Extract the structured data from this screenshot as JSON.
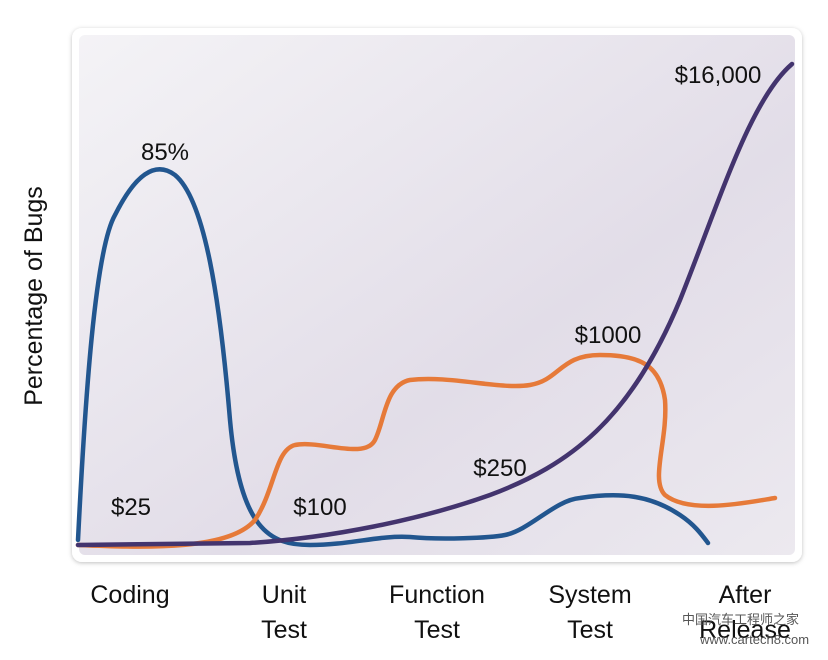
{
  "y_axis_label": "Percentage of Bugs",
  "annotations": {
    "peak": "85%",
    "cost_coding": "$25",
    "cost_unit_test": "$100",
    "cost_function_test": "$250",
    "cost_system_test": "$1000",
    "cost_after_release": "$16,000"
  },
  "stages": [
    [
      "Coding"
    ],
    [
      "Unit",
      "Test"
    ],
    [
      "Function",
      "Test"
    ],
    [
      "System",
      "Test"
    ],
    [
      "After",
      "Release"
    ]
  ],
  "watermark": [
    "中国汽车工程师之家",
    "www.cartech8.com"
  ]
}
